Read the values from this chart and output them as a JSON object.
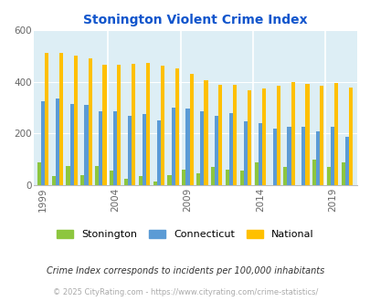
{
  "title": "Stonington Violent Crime Index",
  "title_color": "#1155cc",
  "years": [
    1999,
    2000,
    2001,
    2002,
    2003,
    2004,
    2005,
    2006,
    2007,
    2008,
    2009,
    2010,
    2011,
    2012,
    2013,
    2014,
    2015,
    2016,
    2017,
    2018,
    2019,
    2020
  ],
  "stonington": [
    90,
    35,
    75,
    40,
    75,
    57,
    27,
    35,
    15,
    40,
    62,
    45,
    70,
    62,
    57,
    90,
    0,
    73,
    0,
    100,
    72,
    88
  ],
  "connecticut": [
    325,
    335,
    315,
    310,
    285,
    285,
    268,
    275,
    250,
    300,
    298,
    285,
    268,
    278,
    248,
    242,
    218,
    228,
    228,
    208,
    225,
    188
  ],
  "national": [
    510,
    510,
    500,
    490,
    465,
    465,
    470,
    472,
    463,
    453,
    430,
    405,
    388,
    390,
    368,
    375,
    385,
    400,
    393,
    385,
    395,
    378
  ],
  "xtick_years": [
    1999,
    2004,
    2009,
    2014,
    2019
  ],
  "ylim": [
    0,
    600
  ],
  "yticks": [
    0,
    200,
    400,
    600
  ],
  "color_stonington": "#8dc63f",
  "color_connecticut": "#5b9bd5",
  "color_national": "#ffc000",
  "bg_color": "#ddeef5",
  "legend_labels": [
    "Stonington",
    "Connecticut",
    "National"
  ],
  "footnote1": "Crime Index corresponds to incidents per 100,000 inhabitants",
  "footnote2": "© 2025 CityRating.com - https://www.cityrating.com/crime-statistics/",
  "footnote1_color": "#333333",
  "footnote2_color": "#aaaaaa",
  "grid_color": "#ffffff",
  "vline_x": [
    2003.5,
    2008.5,
    2013.5,
    2018.5
  ]
}
